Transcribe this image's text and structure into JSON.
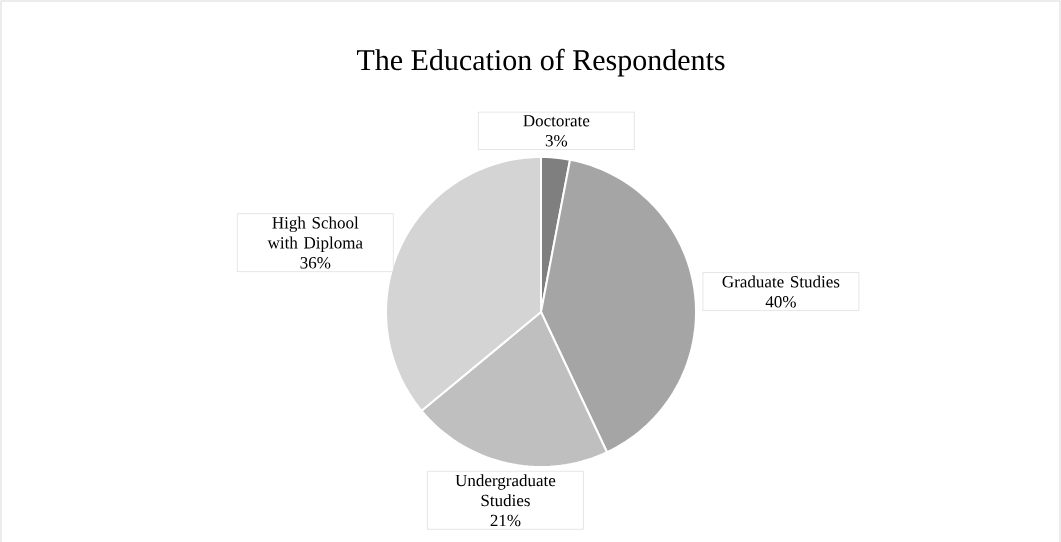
{
  "chart_data": {
    "type": "pie",
    "title": "The Education of Respondents",
    "categories": [
      "Doctorate",
      "Graduate Studies",
      "Undergraduate Studies",
      "High School with Diploma"
    ],
    "values": [
      3,
      40,
      21,
      36
    ],
    "value_labels": [
      "3%",
      "40%",
      "21%",
      "36%"
    ],
    "colors": [
      "#7f7f7f",
      "#a5a5a5",
      "#bfbfbf",
      "#d4d4d4"
    ]
  }
}
